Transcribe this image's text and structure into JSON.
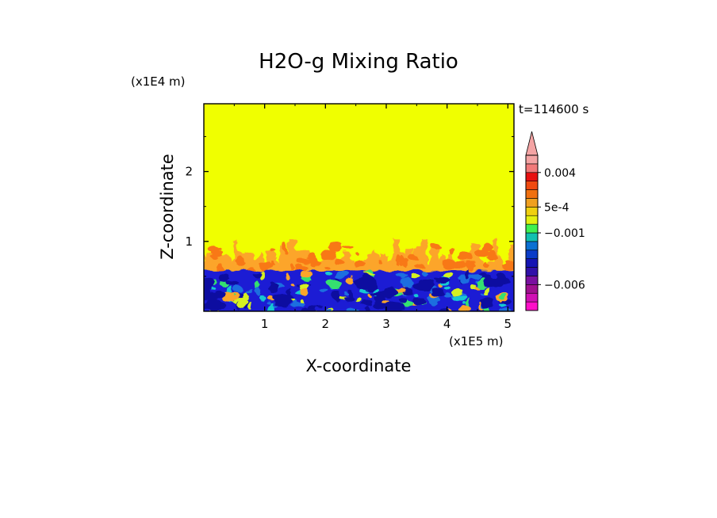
{
  "chart_data": {
    "type": "heatmap",
    "title": "H2O-g Mixing Ratio",
    "xlabel": "X-coordinate",
    "ylabel": "Z-coordinate",
    "x_scale_label": "(x1E5 m)",
    "y_scale_label": "(x1E4 m)",
    "time_label": "t=114600 s",
    "xlim": [
      0,
      5.1
    ],
    "ylim": [
      0,
      2.97
    ],
    "x_ticks": [
      1,
      2,
      3,
      4,
      5
    ],
    "y_ticks": [
      1,
      2
    ],
    "x_tick_labels": [
      "1",
      "2",
      "3",
      "4",
      "5"
    ],
    "y_tick_labels": [
      "1",
      "2"
    ],
    "layers": {
      "bottom_layer_top": 0.58,
      "mixing_layer_top": 1.05,
      "background_level": "0 to 5e-4"
    },
    "colorbar": {
      "levels": [
        -0.009,
        -0.008,
        -0.007,
        -0.006,
        -0.005,
        -0.004,
        -0.003,
        -0.002,
        -0.0015,
        -0.001,
        -0.0005,
        0,
        0.0005,
        0.001,
        0.002,
        0.003,
        0.004,
        0.005,
        0.006
      ],
      "colors": [
        "#ff10c8",
        "#d010b4",
        "#a01090",
        "#7a10a0",
        "#3010a8",
        "#1414b4",
        "#0a3cc8",
        "#0a70d2",
        "#12c0b0",
        "#40f050",
        "#e4f010",
        "#f0d010",
        "#f0a020",
        "#f07010",
        "#f04a10",
        "#e81010",
        "#f27a7a",
        "#f4a4a4"
      ],
      "tick_labels": [
        {
          "label": "0.004",
          "value": 0.004
        },
        {
          "label": "5e-4",
          "value": 0.0005
        },
        {
          "label": "−0.001",
          "value": -0.001
        },
        {
          "label": "−0.006",
          "value": -0.006
        }
      ],
      "extend": "max",
      "extend_color": "#f4a4a4"
    },
    "field_colors": {
      "background": "#f0ff00",
      "mixing_orange": "#fca52a",
      "mixing_red": "#f87814",
      "layer_blue": "#1c1cd4",
      "layer_dark": "#0b0ba0",
      "layer_mid": "#1a6ee0",
      "layer_cyan": "#14c8d2",
      "layer_green": "#34e070",
      "layer_lime": "#d4f020"
    }
  }
}
